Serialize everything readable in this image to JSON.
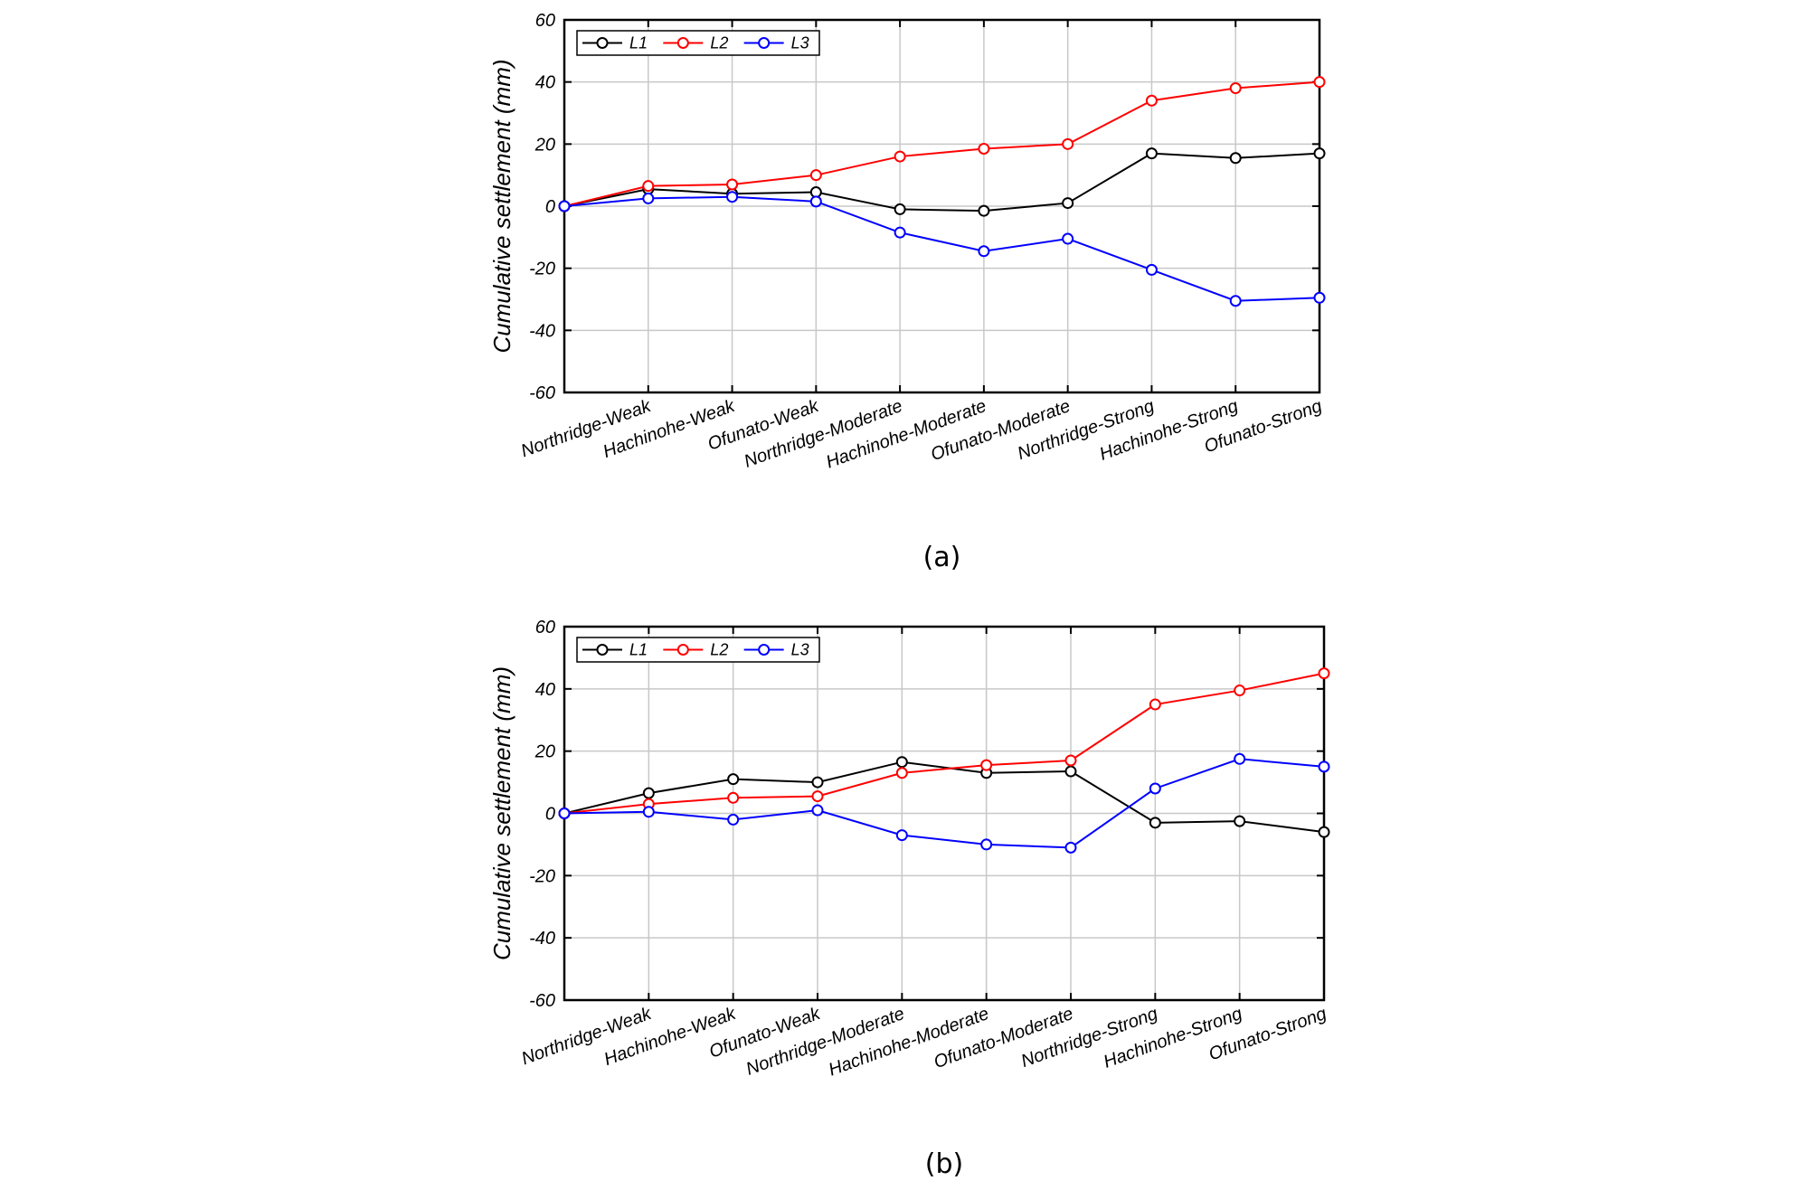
{
  "chart_data": [
    {
      "type": "line",
      "panel_label": "(a)",
      "title": "",
      "xlabel": "",
      "ylabel": "Cumulative settlement (mm)",
      "ylim": [
        -60,
        60
      ],
      "yticks": [
        -60,
        -40,
        -20,
        0,
        20,
        40,
        60
      ],
      "grid": true,
      "legend_position": "top-left",
      "x": [
        0,
        1,
        2,
        3,
        4,
        5,
        6,
        7,
        8,
        9
      ],
      "categories": [
        "",
        "Northridge-Weak",
        "Hachinohe-Weak",
        "Ofunato-Weak",
        "Northridge-Moderate",
        "Hachinohe-Moderate",
        "Ofunato-Moderate",
        "Northridge-Strong",
        "Hachinohe-Strong",
        "Ofunato-Strong"
      ],
      "series": [
        {
          "name": "L1",
          "color": "#000000",
          "values": [
            0,
            5.5,
            4,
            4.5,
            -1,
            -1.5,
            1,
            17,
            15.5,
            17
          ]
        },
        {
          "name": "L2",
          "color": "#ff0000",
          "values": [
            0,
            6.5,
            7,
            10,
            16,
            18.5,
            20,
            34,
            38,
            40
          ]
        },
        {
          "name": "L3",
          "color": "#0000ff",
          "values": [
            0,
            2.5,
            3,
            1.5,
            -8.5,
            -14.5,
            -10.5,
            -20.5,
            -30.5,
            -29.5
          ]
        }
      ]
    },
    {
      "type": "line",
      "panel_label": "(b)",
      "title": "",
      "xlabel": "",
      "ylabel": "Cumulative settlement (mm)",
      "ylim": [
        -60,
        60
      ],
      "yticks": [
        -60,
        -40,
        -20,
        0,
        20,
        40,
        60
      ],
      "grid": true,
      "legend_position": "top-left",
      "x": [
        0,
        1,
        2,
        3,
        4,
        5,
        6,
        7,
        8,
        9
      ],
      "categories": [
        "",
        "Northridge-Weak",
        "Hachinohe-Weak",
        "Ofunato-Weak",
        "Northridge-Moderate",
        "Hachinohe-Moderate",
        "Ofunato-Moderate",
        "Northridge-Strong",
        "Hachinohe-Strong",
        "Ofunato-Strong"
      ],
      "series": [
        {
          "name": "L1",
          "color": "#000000",
          "values": [
            0,
            6.5,
            11,
            10,
            16.5,
            13,
            13.5,
            -3,
            -2.5,
            -6
          ]
        },
        {
          "name": "L2",
          "color": "#ff0000",
          "values": [
            0,
            3,
            5,
            5.5,
            13,
            15.5,
            17,
            35,
            39.5,
            45
          ]
        },
        {
          "name": "L3",
          "color": "#0000ff",
          "values": [
            0,
            0.5,
            -2,
            1,
            -7,
            -10,
            -11,
            8,
            17.5,
            15
          ]
        }
      ]
    }
  ]
}
